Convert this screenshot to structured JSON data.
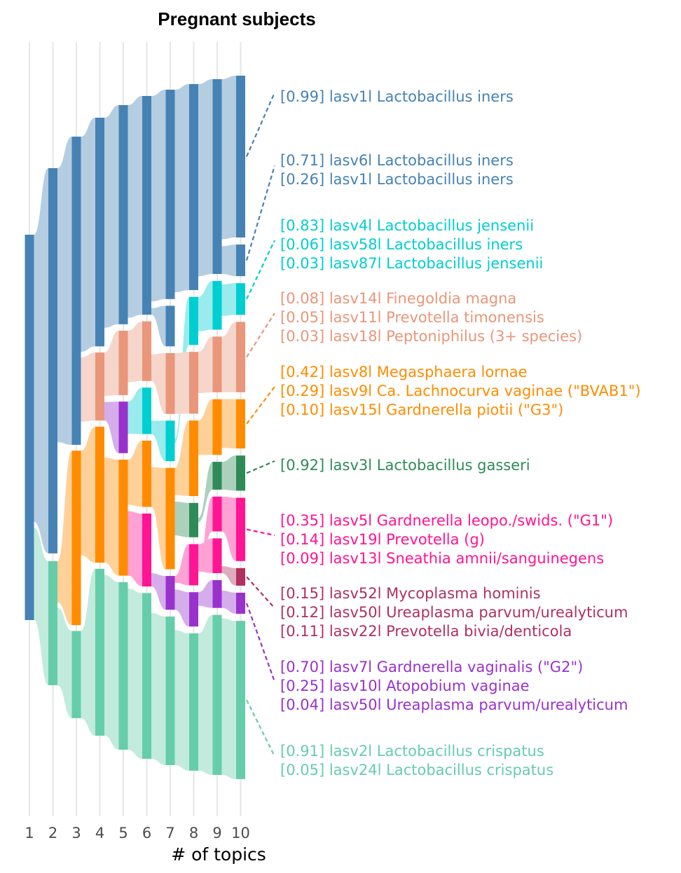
{
  "chart_data": {
    "type": "sankey",
    "title": "Pregnant subjects",
    "xlabel": "# of topics",
    "x_ticks": [
      "1",
      "2",
      "3",
      "4",
      "5",
      "6",
      "7",
      "8",
      "9",
      "10"
    ],
    "grid": "vertical",
    "topics": [
      {
        "k": 1,
        "color": "#4682b4",
        "lo": 0,
        "hi": 1
      },
      {
        "k": 2,
        "color": "#4682b4",
        "lo": 0,
        "hi": 0.745
      },
      {
        "k": 2,
        "color": "#66cdaa",
        "lo": 0.76,
        "hi": 1
      },
      {
        "k": 3,
        "color": "#4682b4",
        "lo": 0,
        "hi": 0.53
      },
      {
        "k": 3,
        "color": "#ff8c00",
        "lo": 0.54,
        "hi": 0.84
      },
      {
        "k": 3,
        "color": "#66cdaa",
        "lo": 0.85,
        "hi": 1
      },
      {
        "k": 4,
        "color": "#4682b4",
        "lo": 0,
        "hi": 0.37
      },
      {
        "k": 4,
        "color": "#e9967a",
        "lo": 0.38,
        "hi": 0.49
      },
      {
        "k": 4,
        "color": "#ff8c00",
        "lo": 0.5,
        "hi": 0.72
      },
      {
        "k": 4,
        "color": "#66cdaa",
        "lo": 0.73,
        "hi": 1
      },
      {
        "k": 5,
        "color": "#4682b4",
        "lo": 0,
        "hi": 0.34
      },
      {
        "k": 5,
        "color": "#e9967a",
        "lo": 0.35,
        "hi": 0.45
      },
      {
        "k": 5,
        "color": "#9932cc",
        "lo": 0.46,
        "hi": 0.54
      },
      {
        "k": 5,
        "color": "#ff8c00",
        "lo": 0.55,
        "hi": 0.73
      },
      {
        "k": 5,
        "color": "#66cdaa",
        "lo": 0.74,
        "hi": 1
      },
      {
        "k": 6,
        "color": "#4682b4",
        "lo": 0,
        "hi": 0.33
      },
      {
        "k": 6,
        "color": "#e9967a",
        "lo": 0.34,
        "hi": 0.43
      },
      {
        "k": 6,
        "color": "#00ced1",
        "lo": 0.44,
        "hi": 0.51
      },
      {
        "k": 6,
        "color": "#ff8c00",
        "lo": 0.52,
        "hi": 0.62
      },
      {
        "k": 6,
        "color": "#ff1493",
        "lo": 0.63,
        "hi": 0.74
      },
      {
        "k": 6,
        "color": "#66cdaa",
        "lo": 0.75,
        "hi": 1
      },
      {
        "k": 7,
        "color": "#4682b4",
        "lo": 0,
        "hi": 0.31
      },
      {
        "k": 7,
        "color": "#4682b4",
        "lo": 0.32,
        "hi": 0.38
      },
      {
        "k": 7,
        "color": "#e9967a",
        "lo": 0.39,
        "hi": 0.48
      },
      {
        "k": 7,
        "color": "#00ced1",
        "lo": 0.49,
        "hi": 0.55
      },
      {
        "k": 7,
        "color": "#ff8c00",
        "lo": 0.56,
        "hi": 0.71
      },
      {
        "k": 7,
        "color": "#9932cc",
        "lo": 0.72,
        "hi": 0.77
      },
      {
        "k": 7,
        "color": "#66cdaa",
        "lo": 0.78,
        "hi": 1
      },
      {
        "k": 8,
        "color": "#4682b4",
        "lo": 0,
        "hi": 0.3
      },
      {
        "k": 8,
        "color": "#00ced1",
        "lo": 0.31,
        "hi": 0.38
      },
      {
        "k": 8,
        "color": "#e9967a",
        "lo": 0.39,
        "hi": 0.48
      },
      {
        "k": 8,
        "color": "#ff8c00",
        "lo": 0.49,
        "hi": 0.6
      },
      {
        "k": 8,
        "color": "#2e8b57",
        "lo": 0.61,
        "hi": 0.66
      },
      {
        "k": 8,
        "color": "#ff1493",
        "lo": 0.67,
        "hi": 0.73
      },
      {
        "k": 8,
        "color": "#9932cc",
        "lo": 0.74,
        "hi": 0.79
      },
      {
        "k": 8,
        "color": "#66cdaa",
        "lo": 0.8,
        "hi": 1
      },
      {
        "k": 9,
        "color": "#4682b4",
        "lo": 0,
        "hi": 0.28
      },
      {
        "k": 9,
        "color": "#00ced1",
        "lo": 0.29,
        "hi": 0.36
      },
      {
        "k": 9,
        "color": "#e9967a",
        "lo": 0.37,
        "hi": 0.45
      },
      {
        "k": 9,
        "color": "#ff8c00",
        "lo": 0.46,
        "hi": 0.54
      },
      {
        "k": 9,
        "color": "#2e8b57",
        "lo": 0.55,
        "hi": 0.59
      },
      {
        "k": 9,
        "color": "#ff1493",
        "lo": 0.6,
        "hi": 0.65
      },
      {
        "k": 9,
        "color": "#ff1493",
        "lo": 0.66,
        "hi": 0.71
      },
      {
        "k": 9,
        "color": "#9932cc",
        "lo": 0.72,
        "hi": 0.76
      },
      {
        "k": 9,
        "color": "#66cdaa",
        "lo": 0.77,
        "hi": 1
      },
      {
        "k": 10,
        "color": "#4682b4",
        "lo": 0,
        "hi": 0.23
      },
      {
        "k": 10,
        "color": "#4682b4",
        "lo": 0.24,
        "hi": 0.285
      },
      {
        "k": 10,
        "color": "#00ced1",
        "lo": 0.295,
        "hi": 0.34
      },
      {
        "k": 10,
        "color": "#e9967a",
        "lo": 0.35,
        "hi": 0.45
      },
      {
        "k": 10,
        "color": "#ff8c00",
        "lo": 0.46,
        "hi": 0.53
      },
      {
        "k": 10,
        "color": "#2e8b57",
        "lo": 0.54,
        "hi": 0.59
      },
      {
        "k": 10,
        "color": "#ff1493",
        "lo": 0.6,
        "hi": 0.69
      },
      {
        "k": 10,
        "color": "#b03060",
        "lo": 0.7,
        "hi": 0.725
      },
      {
        "k": 10,
        "color": "#9932cc",
        "lo": 0.735,
        "hi": 0.765
      },
      {
        "k": 10,
        "color": "#66cdaa",
        "lo": 0.775,
        "hi": 1
      }
    ],
    "annotations": [
      {
        "color": "#4682b4",
        "lines": [
          "[0.99] lasv1l Lactobacillus iners"
        ]
      },
      {
        "color": "#4682b4",
        "lines": [
          "[0.71] lasv6l Lactobacillus iners",
          "[0.26] lasv1l Lactobacillus iners"
        ]
      },
      {
        "color": "#00ced1",
        "lines": [
          "[0.83] lasv4l Lactobacillus jensenii",
          "[0.06] lasv58l Lactobacillus iners",
          "[0.03] lasv87l Lactobacillus jensenii"
        ]
      },
      {
        "color": "#e9967a",
        "lines": [
          "[0.08] lasv14l Finegoldia magna",
          "[0.05] lasv11l Prevotella timonensis",
          "[0.03] lasv18l Peptoniphilus (3+ species)"
        ]
      },
      {
        "color": "#ff8c00",
        "lines": [
          "[0.42] lasv8l Megasphaera lornae",
          "[0.29] lasv9l Ca. Lachnocurva vaginae (\"BVAB1\")",
          "[0.10] lasv15l Gardnerella piotii (\"G3\")"
        ]
      },
      {
        "color": "#2e8b57",
        "lines": [
          "[0.92] lasv3l Lactobacillus gasseri"
        ]
      },
      {
        "color": "#ff1493",
        "lines": [
          "[0.35] lasv5l Gardnerella leopo./swids. (\"G1\")",
          "[0.14] lasv19l Prevotella (g)",
          "[0.09] lasv13l Sneathia amnii/sanguinegens"
        ]
      },
      {
        "color": "#b03060",
        "lines": [
          "[0.15] lasv52l Mycoplasma hominis",
          "[0.12] lasv50l Ureaplasma parvum/urealyticum",
          "[0.11] lasv22l Prevotella bivia/denticola"
        ]
      },
      {
        "color": "#9932cc",
        "lines": [
          "[0.70] lasv7l Gardnerella vaginalis (\"G2\")",
          "[0.25] lasv10l Atopobium vaginae",
          "[0.04] lasv50l Ureaplasma parvum/urealyticum"
        ]
      },
      {
        "color": "#66cdaa",
        "lines": [
          "[0.91] lasv2l Lactobacillus crispatus",
          "[0.05] lasv24l Lactobacillus crispatus"
        ]
      }
    ]
  }
}
